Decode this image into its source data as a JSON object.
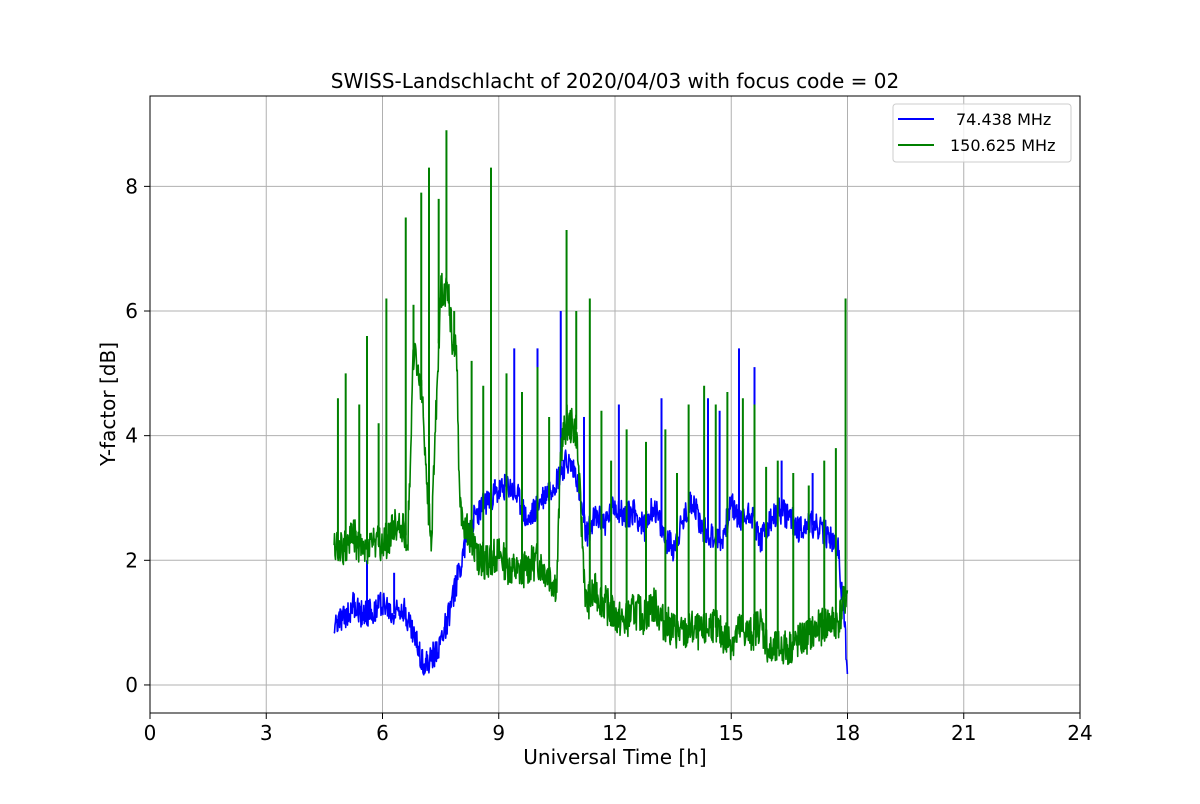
{
  "chart_data": {
    "type": "line",
    "title": "SWISS-Landschlacht of 2020/04/03 with focus code = 02",
    "xlabel": "Universal Time [h]",
    "ylabel": "Y-factor [dB]",
    "xlim": [
      0,
      24
    ],
    "ylim": [
      -0.45,
      9.45
    ],
    "xticks": [
      0,
      3,
      6,
      9,
      12,
      15,
      18,
      21,
      24
    ],
    "xtick_labels": [
      "0",
      "3",
      "6",
      "9",
      "12",
      "15",
      "18",
      "21",
      "24"
    ],
    "yticks": [
      0,
      2,
      4,
      6,
      8
    ],
    "ytick_labels": [
      "0",
      "2",
      "4",
      "6",
      "8"
    ],
    "grid": true,
    "legend_position": "upper-right",
    "series": [
      {
        "name": "74.438 MHz",
        "color": "#0000ff",
        "x": [
          4.75,
          5.0,
          5.25,
          5.5,
          5.75,
          6.0,
          6.25,
          6.5,
          6.75,
          7.0,
          7.1,
          7.25,
          7.5,
          7.75,
          8.0,
          8.25,
          8.5,
          8.75,
          9.0,
          9.25,
          9.5,
          9.75,
          10.0,
          10.25,
          10.5,
          10.75,
          11.0,
          11.25,
          11.5,
          11.75,
          12.0,
          12.25,
          12.5,
          12.75,
          13.0,
          13.25,
          13.5,
          13.75,
          14.0,
          14.25,
          14.5,
          14.75,
          15.0,
          15.25,
          15.5,
          15.75,
          16.0,
          16.25,
          16.5,
          16.75,
          17.0,
          17.25,
          17.5,
          17.75,
          17.95,
          18.0
        ],
        "y": [
          0.95,
          1.05,
          1.3,
          1.1,
          1.2,
          1.35,
          1.1,
          1.3,
          0.9,
          0.45,
          0.3,
          0.4,
          0.7,
          1.2,
          1.9,
          2.6,
          2.8,
          3.0,
          3.1,
          3.2,
          3.0,
          2.6,
          2.9,
          3.1,
          3.3,
          3.6,
          3.4,
          2.4,
          2.7,
          2.6,
          2.9,
          2.7,
          2.8,
          2.5,
          2.9,
          2.4,
          2.2,
          2.6,
          3.0,
          2.5,
          2.4,
          2.3,
          2.9,
          2.6,
          2.8,
          2.3,
          2.6,
          2.8,
          2.7,
          2.5,
          2.6,
          2.5,
          2.4,
          2.2,
          0.8,
          0.0
        ],
        "spikes": [
          [
            5.6,
            2.0
          ],
          [
            6.3,
            1.8
          ],
          [
            8.9,
            3.3
          ],
          [
            9.4,
            5.4
          ],
          [
            10.0,
            5.4
          ],
          [
            10.6,
            6.0
          ],
          [
            11.2,
            4.3
          ],
          [
            12.1,
            4.5
          ],
          [
            13.2,
            4.6
          ],
          [
            14.4,
            4.6
          ],
          [
            14.7,
            4.4
          ],
          [
            15.2,
            5.4
          ],
          [
            15.6,
            5.1
          ],
          [
            16.3,
            3.6
          ],
          [
            17.1,
            3.4
          ]
        ]
      },
      {
        "name": "150.625 MHz",
        "color": "#008000",
        "x": [
          4.75,
          5.0,
          5.25,
          5.5,
          5.75,
          6.0,
          6.25,
          6.5,
          6.65,
          6.8,
          7.0,
          7.25,
          7.5,
          7.7,
          7.8,
          7.9,
          8.0,
          8.25,
          8.5,
          8.75,
          9.0,
          9.25,
          9.5,
          9.75,
          10.0,
          10.25,
          10.5,
          10.6,
          10.75,
          11.0,
          11.25,
          11.5,
          11.75,
          12.0,
          12.25,
          12.5,
          12.75,
          13.0,
          13.25,
          13.5,
          13.75,
          14.0,
          14.25,
          14.5,
          14.75,
          15.0,
          15.25,
          15.5,
          15.75,
          16.0,
          16.25,
          16.5,
          16.75,
          17.0,
          17.25,
          17.5,
          17.75,
          17.95,
          18.0
        ],
        "y": [
          2.3,
          2.2,
          2.4,
          2.1,
          2.3,
          2.2,
          2.5,
          2.6,
          2.3,
          5.3,
          4.8,
          2.2,
          6.3,
          6.4,
          5.5,
          5.6,
          2.8,
          2.4,
          2.0,
          2.0,
          2.1,
          1.9,
          1.8,
          1.9,
          2.0,
          1.8,
          1.6,
          3.8,
          4.2,
          4.1,
          1.3,
          1.5,
          1.3,
          1.1,
          1.0,
          1.2,
          1.1,
          1.3,
          1.0,
          0.9,
          0.8,
          0.9,
          0.8,
          1.0,
          0.8,
          0.7,
          0.9,
          0.8,
          1.0,
          0.5,
          0.6,
          0.6,
          0.7,
          0.8,
          0.9,
          1.0,
          1.0,
          1.4,
          1.5
        ],
        "spikes": [
          [
            4.85,
            4.6
          ],
          [
            5.05,
            5.0
          ],
          [
            5.4,
            4.5
          ],
          [
            5.6,
            5.6
          ],
          [
            5.9,
            4.2
          ],
          [
            6.1,
            6.2
          ],
          [
            6.6,
            7.5
          ],
          [
            6.8,
            6.1
          ],
          [
            7.0,
            7.9
          ],
          [
            7.2,
            8.3
          ],
          [
            7.45,
            7.8
          ],
          [
            7.65,
            8.9
          ],
          [
            7.85,
            6.0
          ],
          [
            8.3,
            5.2
          ],
          [
            8.6,
            4.8
          ],
          [
            8.8,
            8.3
          ],
          [
            9.2,
            5.0
          ],
          [
            9.6,
            4.7
          ],
          [
            10.0,
            5.1
          ],
          [
            10.3,
            4.3
          ],
          [
            10.75,
            7.3
          ],
          [
            11.0,
            6.0
          ],
          [
            11.35,
            6.2
          ],
          [
            11.65,
            4.4
          ],
          [
            11.9,
            3.6
          ],
          [
            12.3,
            4.1
          ],
          [
            12.8,
            3.9
          ],
          [
            13.3,
            4.1
          ],
          [
            13.6,
            3.4
          ],
          [
            13.9,
            4.5
          ],
          [
            14.3,
            4.8
          ],
          [
            14.6,
            4.5
          ],
          [
            14.9,
            4.7
          ],
          [
            15.3,
            4.6
          ],
          [
            15.6,
            4.5
          ],
          [
            15.9,
            3.5
          ],
          [
            16.2,
            3.6
          ],
          [
            16.6,
            3.4
          ],
          [
            17.0,
            3.2
          ],
          [
            17.4,
            3.6
          ],
          [
            17.7,
            3.8
          ],
          [
            17.95,
            6.2
          ]
        ]
      }
    ]
  }
}
